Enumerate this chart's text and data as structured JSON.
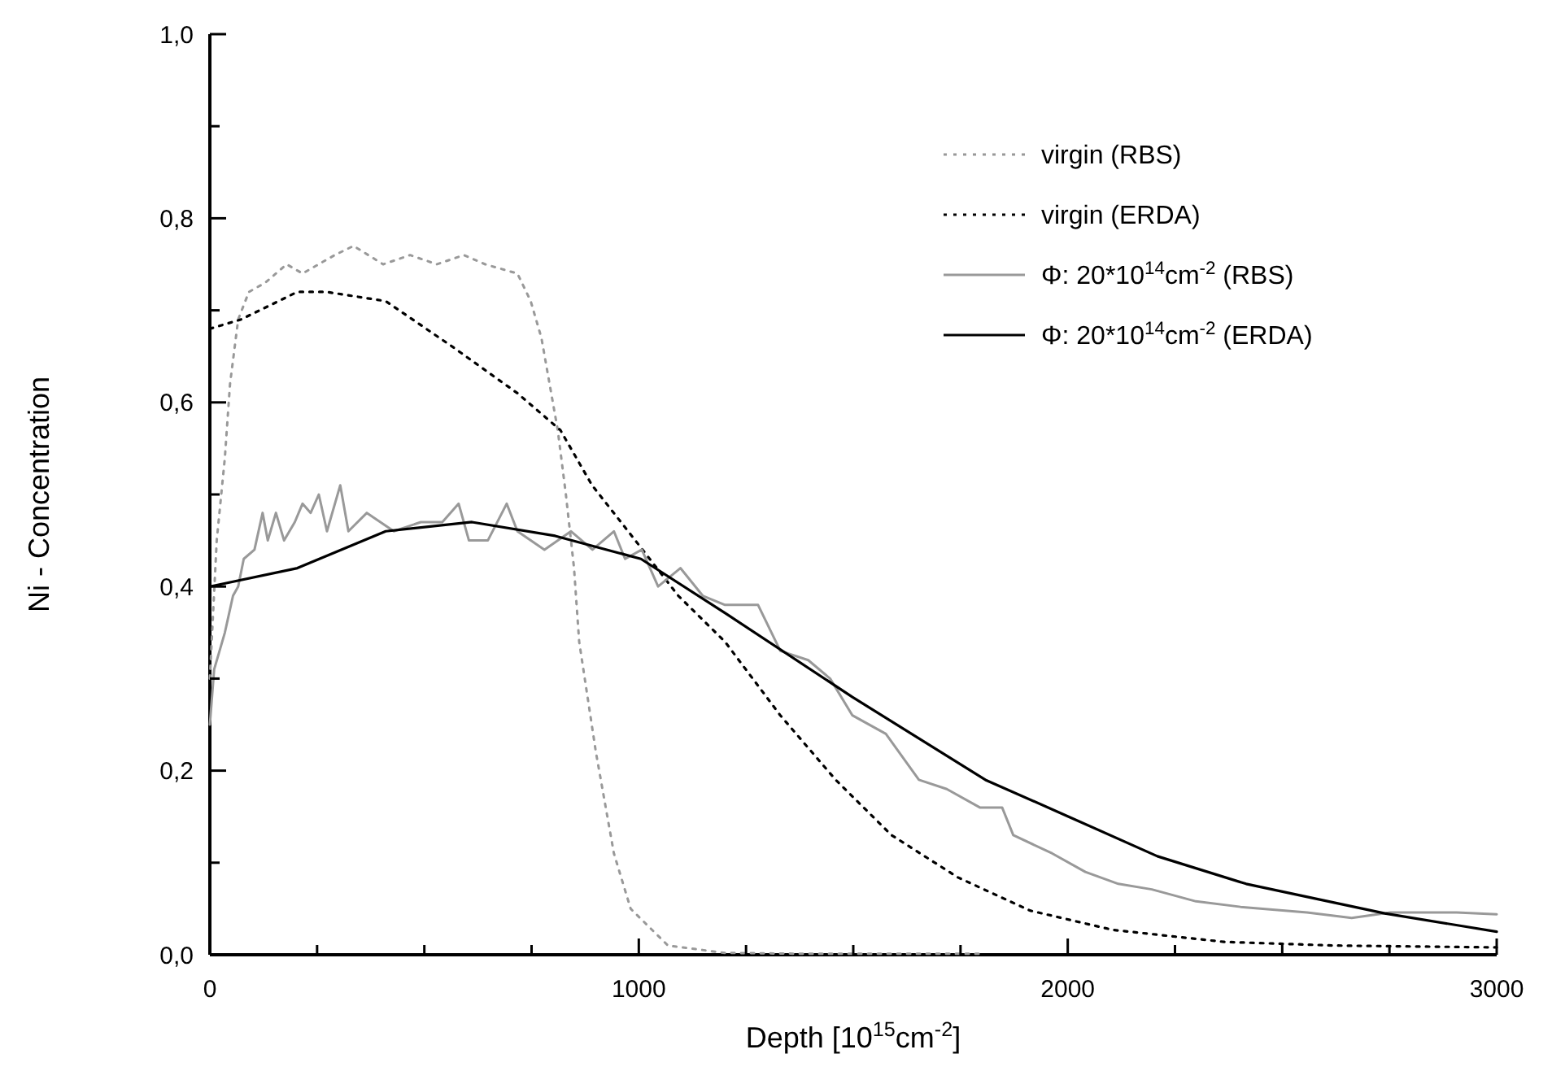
{
  "chart_data": {
    "type": "line",
    "xlabel": "Depth [10$^{15}$cm$^{-2}$]",
    "ylabel": "Ni - Concentration",
    "xlim": [
      0,
      3000
    ],
    "ylim": [
      0,
      1
    ],
    "xticks": [
      {
        "value": 0,
        "label": "0"
      },
      {
        "value": 250,
        "label": null
      },
      {
        "value": 500,
        "label": null
      },
      {
        "value": 750,
        "label": null
      },
      {
        "value": 1000,
        "label": "1000"
      },
      {
        "value": 1250,
        "label": null
      },
      {
        "value": 1500,
        "label": null
      },
      {
        "value": 1750,
        "label": null
      },
      {
        "value": 2000,
        "label": "2000"
      },
      {
        "value": 2250,
        "label": null
      },
      {
        "value": 2500,
        "label": null
      },
      {
        "value": 2750,
        "label": null
      },
      {
        "value": 3000,
        "label": "3000"
      }
    ],
    "yticks": [
      {
        "value": 0,
        "label": "0,0"
      },
      {
        "value": 0.1,
        "label": null
      },
      {
        "value": 0.2,
        "label": "0,2"
      },
      {
        "value": 0.3,
        "label": null
      },
      {
        "value": 0.4,
        "label": "0,4"
      },
      {
        "value": 0.5,
        "label": null
      },
      {
        "value": 0.6,
        "label": "0,6"
      },
      {
        "value": 0.7,
        "label": null
      },
      {
        "value": 0.8,
        "label": "0,8"
      },
      {
        "value": 0.9,
        "label": null
      },
      {
        "value": 1,
        "label": "1,0"
      }
    ],
    "grid": false,
    "legend": "top right",
    "series": [
      {
        "name": "virgin (RBS)",
        "color": "#999999",
        "line_style": "dotted",
        "x": [
          0,
          16,
          35,
          47,
          66,
          91,
          129,
          179,
          216,
          291,
          335,
          404,
          467,
          529,
          592,
          642,
          717,
          748,
          773,
          792,
          811,
          830,
          849,
          861,
          900,
          942,
          981,
          1068,
          1201,
          1400,
          1600,
          1800
        ],
        "values": [
          0.3,
          0.45,
          0.54,
          0.62,
          0.69,
          0.72,
          0.73,
          0.75,
          0.74,
          0.76,
          0.77,
          0.75,
          0.76,
          0.75,
          0.76,
          0.75,
          0.74,
          0.71,
          0.67,
          0.62,
          0.57,
          0.5,
          0.42,
          0.34,
          0.22,
          0.11,
          0.05,
          0.01,
          0.002,
          0.001,
          0.001,
          0.001
        ]
      },
      {
        "name": "virgin (ERDA)",
        "color": "#000000",
        "line_style": "dotted",
        "x": [
          0,
          72,
          204,
          272,
          410,
          567,
          717,
          817,
          891,
          992,
          1092,
          1201,
          1330,
          1459,
          1589,
          1744,
          1912,
          2105,
          2364,
          2623,
          3000
        ],
        "values": [
          0.68,
          0.69,
          0.72,
          0.72,
          0.71,
          0.66,
          0.61,
          0.57,
          0.51,
          0.45,
          0.39,
          0.34,
          0.26,
          0.19,
          0.13,
          0.084,
          0.048,
          0.027,
          0.014,
          0.01,
          0.008
        ]
      },
      {
        "name": "Φ: 20*10$^{14}$cm$^{-2}$ (RBS)",
        "color": "#999999",
        "line_style": "solid",
        "x": [
          0,
          10,
          35,
          54,
          66,
          79,
          104,
          123,
          135,
          154,
          173,
          198,
          216,
          235,
          254,
          273,
          304,
          323,
          366,
          429,
          492,
          542,
          580,
          604,
          648,
          692,
          717,
          780,
          842,
          892,
          942,
          968,
          1007,
          1045,
          1097,
          1149,
          1201,
          1278,
          1330,
          1395,
          1446,
          1498,
          1576,
          1653,
          1718,
          1795,
          1847,
          1873,
          1964,
          2041,
          2118,
          2196,
          2299,
          2403,
          2558,
          2662,
          2752,
          2907,
          3000
        ],
        "values": [
          0.25,
          0.31,
          0.35,
          0.39,
          0.4,
          0.43,
          0.44,
          0.48,
          0.45,
          0.48,
          0.45,
          0.47,
          0.49,
          0.48,
          0.5,
          0.46,
          0.51,
          0.46,
          0.48,
          0.46,
          0.47,
          0.47,
          0.49,
          0.45,
          0.45,
          0.49,
          0.46,
          0.44,
          0.46,
          0.44,
          0.46,
          0.43,
          0.44,
          0.4,
          0.42,
          0.39,
          0.38,
          0.38,
          0.33,
          0.32,
          0.3,
          0.26,
          0.24,
          0.19,
          0.18,
          0.16,
          0.16,
          0.13,
          0.11,
          0.09,
          0.077,
          0.071,
          0.058,
          0.052,
          0.046,
          0.04,
          0.046,
          0.046,
          0.044
        ]
      },
      {
        "name": "Φ: 20*10$^{14}$cm$^{-2}$ (ERDA)",
        "color": "#000000",
        "line_style": "solid",
        "x": [
          0,
          204,
          410,
          611,
          805,
          1005,
          1205,
          1498,
          1808,
          2002,
          2209,
          2416,
          2739,
          3000
        ],
        "values": [
          0.4,
          0.42,
          0.46,
          0.47,
          0.455,
          0.43,
          0.37,
          0.28,
          0.19,
          0.15,
          0.107,
          0.077,
          0.045,
          0.025
        ]
      }
    ]
  }
}
